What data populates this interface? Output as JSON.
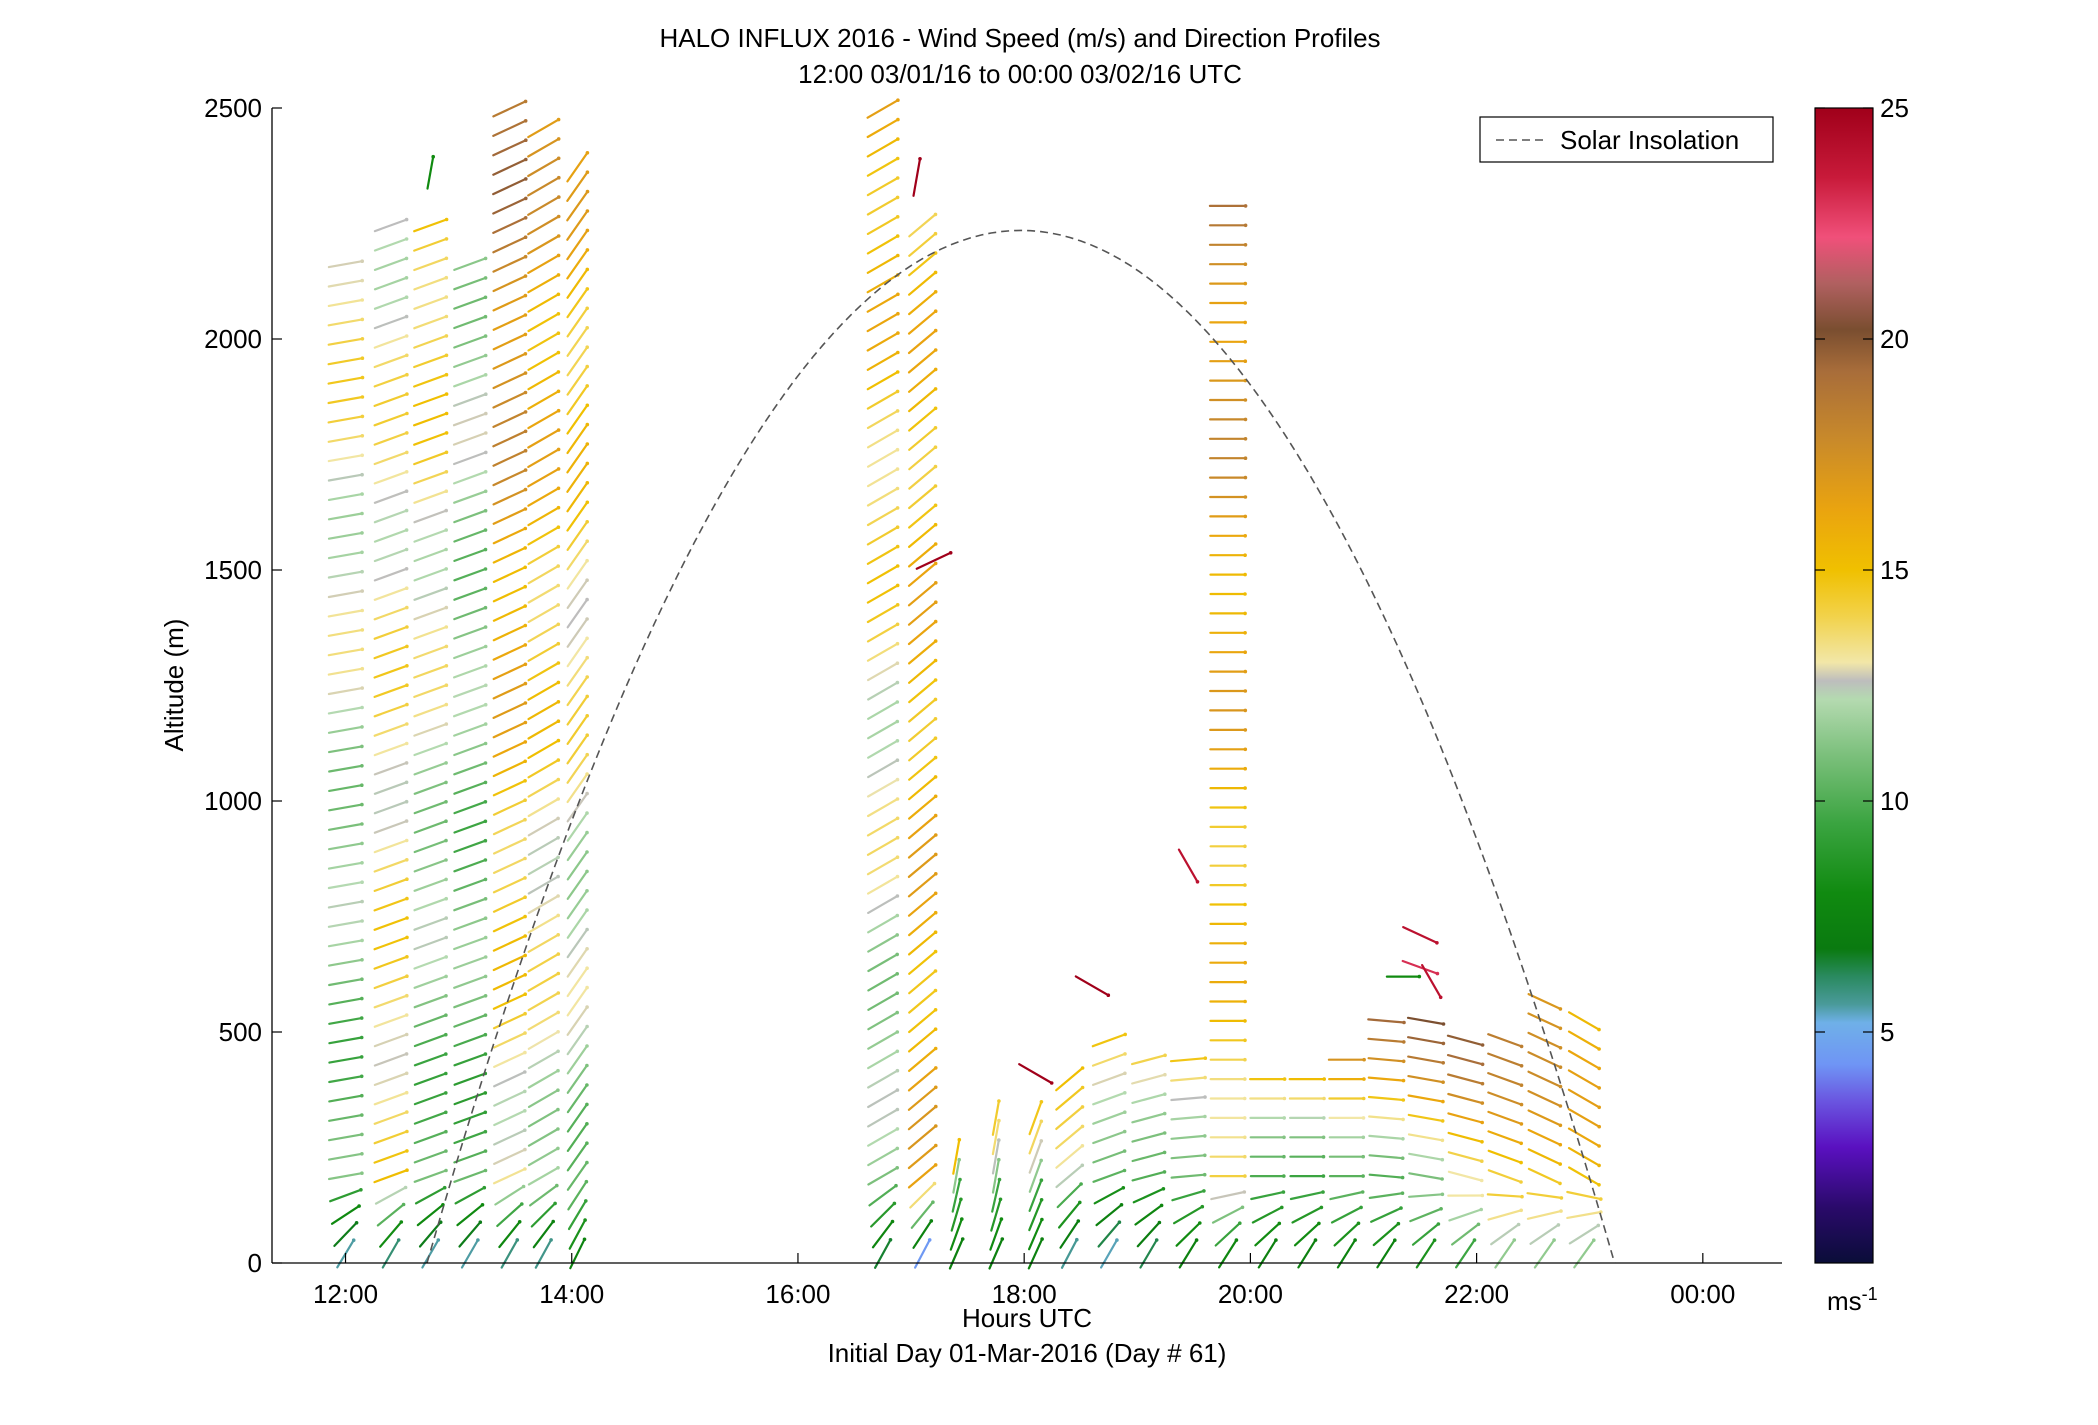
{
  "chart_data": {
    "type": "wind-barb-profile",
    "title": "HALO INFLUX 2016 - Wind Speed (m/s) and Direction Profiles",
    "subtitle": "12:00 03/01/16 to 00:00 03/02/16  UTC",
    "xlabel": "Hours UTC",
    "xlabel2": "Initial Day 01-Mar-2016 (Day # 61)",
    "ylabel": "Altitude (m)",
    "xlim": [
      11.35,
      24.7
    ],
    "ylim": [
      0,
      2500
    ],
    "xticks": [
      {
        "value": 12,
        "label": "12:00"
      },
      {
        "value": 14,
        "label": "14:00"
      },
      {
        "value": 16,
        "label": "16:00"
      },
      {
        "value": 18,
        "label": "18:00"
      },
      {
        "value": 20,
        "label": "20:00"
      },
      {
        "value": 22,
        "label": "22:00"
      },
      {
        "value": 24,
        "label": "00:00"
      }
    ],
    "yticks": [
      {
        "value": 0,
        "label": "0"
      },
      {
        "value": 500,
        "label": "500"
      },
      {
        "value": 1000,
        "label": "1000"
      },
      {
        "value": 1500,
        "label": "1500"
      },
      {
        "value": 2000,
        "label": "2000"
      },
      {
        "value": 2500,
        "label": "2500"
      }
    ],
    "legend": {
      "label": "Solar Insolation",
      "position": "top-right",
      "style": "dashed",
      "color": "#555555"
    },
    "solar_insolation": {
      "start_hour": 12.72,
      "end_hour": 23.22,
      "peak_hour": 17.97,
      "peak_altitude": 2235
    },
    "colorbar": {
      "range": [
        0,
        25
      ],
      "unit": "ms-1",
      "ticks": [
        {
          "value": 5,
          "label": "5"
        },
        {
          "value": 10,
          "label": "10"
        },
        {
          "value": 15,
          "label": "15"
        },
        {
          "value": 20,
          "label": "20"
        },
        {
          "value": 25,
          "label": "25"
        }
      ],
      "stops": [
        {
          "v": 0,
          "c": "#0a0d38"
        },
        {
          "v": 1.2,
          "c": "#2a0a6a"
        },
        {
          "v": 2.5,
          "c": "#5a10c0"
        },
        {
          "v": 3.5,
          "c": "#6a55e0"
        },
        {
          "v": 4.3,
          "c": "#6f95f5"
        },
        {
          "v": 5.2,
          "c": "#6fb0e8"
        },
        {
          "v": 5.6,
          "c": "#4a9a9a"
        },
        {
          "v": 6.2,
          "c": "#2a8a60"
        },
        {
          "v": 6.8,
          "c": "#0a7a10"
        },
        {
          "v": 8.0,
          "c": "#108a10"
        },
        {
          "v": 9.5,
          "c": "#3aa440"
        },
        {
          "v": 11.0,
          "c": "#7cc07c"
        },
        {
          "v": 12.2,
          "c": "#b4dab0"
        },
        {
          "v": 12.6,
          "c": "#bdbdbd"
        },
        {
          "v": 13.0,
          "c": "#f2e7a8"
        },
        {
          "v": 14.0,
          "c": "#f2d24a"
        },
        {
          "v": 15.0,
          "c": "#f0c000"
        },
        {
          "v": 16.3,
          "c": "#eaa40f"
        },
        {
          "v": 17.8,
          "c": "#c98a2a"
        },
        {
          "v": 19.3,
          "c": "#a86d3a"
        },
        {
          "v": 20.2,
          "c": "#7a4e30"
        },
        {
          "v": 21.2,
          "c": "#b06060"
        },
        {
          "v": 22.2,
          "c": "#f0507a"
        },
        {
          "v": 23.5,
          "c": "#c81a3a"
        },
        {
          "v": 25,
          "c": "#a0001a"
        }
      ]
    },
    "profiles": [
      {
        "time": 12.0,
        "alt_min": 0,
        "alt_max": 2180,
        "low_speed": 5,
        "mid_speed": 10,
        "top_speed": 14,
        "angle": -10
      },
      {
        "time": 12.4,
        "alt_min": 0,
        "alt_max": 2250,
        "low_speed": 5,
        "mid_speed": 14,
        "top_speed": 13,
        "angle": -20
      },
      {
        "time": 12.75,
        "alt_min": 0,
        "alt_max": 2280,
        "low_speed": 5,
        "mid_speed": 10,
        "top_speed": 15,
        "angle": -20
      },
      {
        "time": 13.1,
        "alt_min": 0,
        "alt_max": 2200,
        "low_speed": 5,
        "mid_speed": 10,
        "top_speed": 12,
        "angle": -20
      },
      {
        "time": 13.45,
        "alt_min": 0,
        "alt_max": 2500,
        "low_speed": 5,
        "mid_speed": 13,
        "top_speed": 19,
        "angle": -25
      },
      {
        "time": 13.75,
        "alt_min": 0,
        "alt_max": 2460,
        "low_speed": 5,
        "mid_speed": 12,
        "top_speed": 17,
        "angle": -30
      },
      {
        "time": 14.05,
        "alt_min": 0,
        "alt_max": 2380,
        "low_speed": 7,
        "mid_speed": 11,
        "top_speed": 16,
        "angle": -55
      },
      {
        "time": 16.75,
        "alt_min": 0,
        "alt_max": 2500,
        "low_speed": 6,
        "mid_speed": 11,
        "top_speed": 16,
        "angle": -30
      },
      {
        "time": 17.1,
        "alt_min": 0,
        "alt_max": 2270,
        "low_speed": 3,
        "mid_speed": 16,
        "top_speed": 15,
        "angle": -40
      },
      {
        "time": 17.4,
        "alt_min": 0,
        "alt_max": 230,
        "low_speed": 7,
        "mid_speed": 10,
        "top_speed": 14,
        "angle": -80
      },
      {
        "time": 17.75,
        "alt_min": 0,
        "alt_max": 330,
        "low_speed": 7,
        "mid_speed": 10,
        "top_speed": 14,
        "angle": -80
      },
      {
        "time": 18.1,
        "alt_min": 0,
        "alt_max": 340,
        "low_speed": 7,
        "mid_speed": 10,
        "top_speed": 15,
        "angle": -70
      },
      {
        "time": 18.4,
        "alt_min": 0,
        "alt_max": 400,
        "low_speed": 5,
        "mid_speed": 11,
        "top_speed": 16,
        "angle": -40
      },
      {
        "time": 18.75,
        "alt_min": 0,
        "alt_max": 490,
        "low_speed": 5,
        "mid_speed": 9,
        "top_speed": 16,
        "angle": -20
      },
      {
        "time": 19.1,
        "alt_min": 0,
        "alt_max": 480,
        "low_speed": 6,
        "mid_speed": 9,
        "top_speed": 16,
        "angle": -15
      },
      {
        "time": 19.45,
        "alt_min": 0,
        "alt_max": 460,
        "low_speed": 7,
        "mid_speed": 10,
        "top_speed": 16,
        "angle": -5
      },
      {
        "time": 19.8,
        "alt_min": 0,
        "alt_max": 2320,
        "low_speed": 7,
        "mid_speed": 14,
        "top_speed": 18,
        "angle": 0
      },
      {
        "time": 20.15,
        "alt_min": 0,
        "alt_max": 420,
        "low_speed": 7,
        "mid_speed": 10,
        "top_speed": 16,
        "angle": 0
      },
      {
        "time": 20.5,
        "alt_min": 0,
        "alt_max": 420,
        "low_speed": 7,
        "mid_speed": 10,
        "top_speed": 16,
        "angle": 0
      },
      {
        "time": 20.85,
        "alt_min": 0,
        "alt_max": 460,
        "low_speed": 7,
        "mid_speed": 11,
        "top_speed": 17,
        "angle": 0
      },
      {
        "time": 21.2,
        "alt_min": 0,
        "alt_max": 560,
        "low_speed": 7,
        "mid_speed": 11,
        "top_speed": 19,
        "angle": 5
      },
      {
        "time": 21.55,
        "alt_min": 0,
        "alt_max": 560,
        "low_speed": 8,
        "mid_speed": 12,
        "top_speed": 20,
        "angle": 10
      },
      {
        "time": 21.9,
        "alt_min": 0,
        "alt_max": 500,
        "low_speed": 9,
        "mid_speed": 14,
        "top_speed": 19,
        "angle": 15
      },
      {
        "time": 22.25,
        "alt_min": 0,
        "alt_max": 520,
        "low_speed": 11,
        "mid_speed": 15,
        "top_speed": 18,
        "angle": 20
      },
      {
        "time": 22.6,
        "alt_min": 0,
        "alt_max": 600,
        "low_speed": 11,
        "mid_speed": 15,
        "top_speed": 18,
        "angle": 25
      },
      {
        "time": 22.95,
        "alt_min": 0,
        "alt_max": 560,
        "low_speed": 11,
        "mid_speed": 15,
        "top_speed": 16,
        "angle": 30
      }
    ],
    "isolated_barbs": [
      {
        "time": 12.75,
        "alt": 2360,
        "speed": 8,
        "angle": -80
      },
      {
        "time": 17.05,
        "alt": 2350,
        "speed": 25,
        "angle": -80
      },
      {
        "time": 17.2,
        "alt": 1520,
        "speed": 25,
        "angle": -25
      },
      {
        "time": 18.1,
        "alt": 410,
        "speed": 25,
        "angle": 30
      },
      {
        "time": 18.6,
        "alt": 600,
        "speed": 25,
        "angle": 30
      },
      {
        "time": 19.45,
        "alt": 860,
        "speed": 24,
        "angle": 60
      },
      {
        "time": 21.5,
        "alt": 710,
        "speed": 24,
        "angle": 25
      },
      {
        "time": 21.5,
        "alt": 640,
        "speed": 23,
        "angle": 20
      },
      {
        "time": 21.35,
        "alt": 620,
        "speed": 8,
        "angle": 0
      },
      {
        "time": 21.6,
        "alt": 610,
        "speed": 24,
        "angle": 60
      }
    ]
  }
}
